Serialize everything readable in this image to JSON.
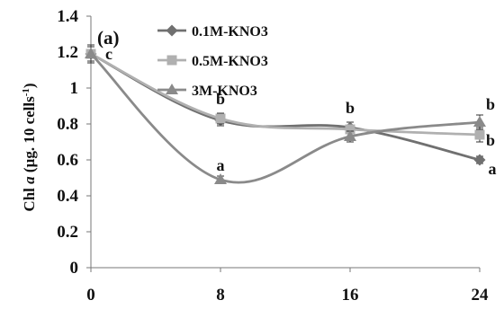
{
  "chart_data": {
    "type": "line",
    "panel_label": "(a)",
    "ylabel_prefix": "Chl ",
    "ylabel_italic": "a",
    "ylabel_suffix": " (µg. 10 cells",
    "ylabel_sup": "-1",
    "ylabel_close": ")",
    "xlabel": "",
    "x": [
      0,
      8,
      16,
      24
    ],
    "x_tick_labels": [
      "0",
      "8",
      "16",
      "24"
    ],
    "ylim": [
      0,
      1.4
    ],
    "y_ticks": [
      0,
      0.2,
      0.4,
      0.6,
      0.8,
      1,
      1.2,
      1.4
    ],
    "y_tick_labels": [
      "0",
      "0.2",
      "0.4",
      "0.6",
      "0.8",
      "1",
      "1.2",
      "1.4"
    ],
    "grid": false,
    "legend_position": "top-center",
    "series": [
      {
        "name": "0.1M-KNO3",
        "values": [
          1.19,
          0.82,
          0.78,
          0.6
        ],
        "errors": [
          0.04,
          0.03,
          0.03,
          0.02
        ],
        "color": "#707070",
        "marker": "diamond"
      },
      {
        "name": "0.5M-KNO3",
        "values": [
          1.19,
          0.83,
          0.77,
          0.74
        ],
        "errors": [
          0.04,
          0.03,
          0.02,
          0.04
        ],
        "color": "#b0b0b0",
        "marker": "square"
      },
      {
        "name": "3M-KNO3",
        "values": [
          1.19,
          0.49,
          0.73,
          0.81
        ],
        "errors": [
          0.05,
          0.02,
          0.03,
          0.04
        ],
        "color": "#8a8a8a",
        "marker": "triangle"
      }
    ],
    "annotations": [
      {
        "text": "c",
        "x": 0,
        "y": 1.19
      },
      {
        "text": "b",
        "x": 8,
        "y": 0.83
      },
      {
        "text": "a",
        "x": 8,
        "y": 0.49
      },
      {
        "text": "b",
        "x": 16,
        "y": 0.78
      },
      {
        "text": "b",
        "x": 24,
        "y": 0.81
      },
      {
        "text": "b",
        "x": 24,
        "y": 0.74
      },
      {
        "text": "a",
        "x": 24,
        "y": 0.6
      }
    ]
  }
}
